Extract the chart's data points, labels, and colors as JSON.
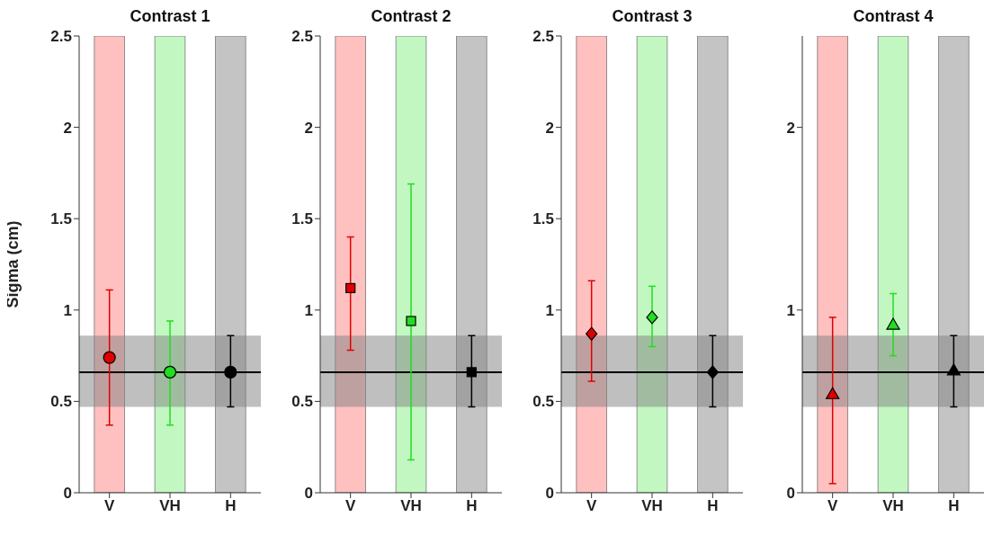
{
  "chart_data": [
    {
      "type": "scatter",
      "title": "Contrast 1",
      "ylabel": "Sigma (cm)",
      "categories": [
        "V",
        "VH",
        "H"
      ],
      "marker": "circle",
      "values": [
        0.74,
        0.66,
        0.66
      ],
      "errors": [
        [
          0.37,
          1.11
        ],
        [
          0.37,
          0.94
        ],
        [
          0.47,
          0.86
        ]
      ],
      "colors": [
        "#e00000",
        "#22dd22",
        "#000000"
      ],
      "ylim": [
        0,
        2.5
      ],
      "yticks": [
        0,
        0.5,
        1,
        1.5,
        2,
        2.5
      ],
      "ref_lines": [
        {
          "axis": "y",
          "value": 0.66,
          "color": "#000000"
        }
      ],
      "bands": [
        {
          "axis": "x",
          "from": "V",
          "to": "V",
          "color": "#ffc0c0"
        },
        {
          "axis": "x",
          "from": "VH",
          "to": "VH",
          "color": "#c2f7c2"
        },
        {
          "axis": "x",
          "from": "H",
          "to": "H",
          "color": "#c4c4c4"
        },
        {
          "axis": "y",
          "from": 0.47,
          "to": 0.86,
          "color": "#808080"
        }
      ]
    },
    {
      "type": "scatter",
      "title": "Contrast 2",
      "categories": [
        "V",
        "VH",
        "H"
      ],
      "marker": "square",
      "values": [
        1.12,
        0.94,
        0.66
      ],
      "errors": [
        [
          0.78,
          1.4
        ],
        [
          0.18,
          1.69
        ],
        [
          0.47,
          0.86
        ]
      ],
      "colors": [
        "#e00000",
        "#22dd22",
        "#000000"
      ],
      "ylim": [
        0,
        2.5
      ],
      "yticks": [
        0,
        0.5,
        1,
        1.5,
        2,
        2.5
      ],
      "ref_lines": [
        {
          "axis": "y",
          "value": 0.66,
          "color": "#000000"
        }
      ],
      "bands": [
        {
          "axis": "x",
          "from": "V",
          "to": "V",
          "color": "#ffc0c0"
        },
        {
          "axis": "x",
          "from": "VH",
          "to": "VH",
          "color": "#c2f7c2"
        },
        {
          "axis": "x",
          "from": "H",
          "to": "H",
          "color": "#c4c4c4"
        },
        {
          "axis": "y",
          "from": 0.47,
          "to": 0.86,
          "color": "#808080"
        }
      ]
    },
    {
      "type": "scatter",
      "title": "Contrast 3",
      "categories": [
        "V",
        "VH",
        "H"
      ],
      "marker": "diamond",
      "values": [
        0.87,
        0.96,
        0.66
      ],
      "errors": [
        [
          0.61,
          1.16
        ],
        [
          0.8,
          1.13
        ],
        [
          0.47,
          0.86
        ]
      ],
      "colors": [
        "#e00000",
        "#22dd22",
        "#000000"
      ],
      "ylim": [
        0,
        2.5
      ],
      "yticks": [
        0,
        0.5,
        1,
        1.5,
        2,
        2.5
      ],
      "ref_lines": [
        {
          "axis": "y",
          "value": 0.66,
          "color": "#000000"
        }
      ],
      "bands": [
        {
          "axis": "x",
          "from": "V",
          "to": "V",
          "color": "#ffc0c0"
        },
        {
          "axis": "x",
          "from": "VH",
          "to": "VH",
          "color": "#c2f7c2"
        },
        {
          "axis": "x",
          "from": "H",
          "to": "H",
          "color": "#c4c4c4"
        },
        {
          "axis": "y",
          "from": 0.47,
          "to": 0.86,
          "color": "#808080"
        }
      ]
    },
    {
      "type": "scatter",
      "title": "Contrast 4",
      "categories": [
        "V",
        "VH",
        "H"
      ],
      "marker": "triangle",
      "values": [
        0.54,
        0.92,
        0.67
      ],
      "errors": [
        [
          0.05,
          0.96
        ],
        [
          0.75,
          1.09
        ],
        [
          0.47,
          0.86
        ]
      ],
      "colors": [
        "#e00000",
        "#22dd22",
        "#000000"
      ],
      "ylim": [
        0,
        2.5
      ],
      "yticks": [
        0,
        1,
        2
      ],
      "ref_lines": [
        {
          "axis": "y",
          "value": 0.66,
          "color": "#000000"
        }
      ],
      "bands": [
        {
          "axis": "x",
          "from": "V",
          "to": "V",
          "color": "#ffc0c0"
        },
        {
          "axis": "x",
          "from": "VH",
          "to": "VH",
          "color": "#c2f7c2"
        },
        {
          "axis": "x",
          "from": "H",
          "to": "H",
          "color": "#c4c4c4"
        },
        {
          "axis": "y",
          "from": 0.47,
          "to": 0.86,
          "color": "#808080"
        }
      ]
    }
  ]
}
